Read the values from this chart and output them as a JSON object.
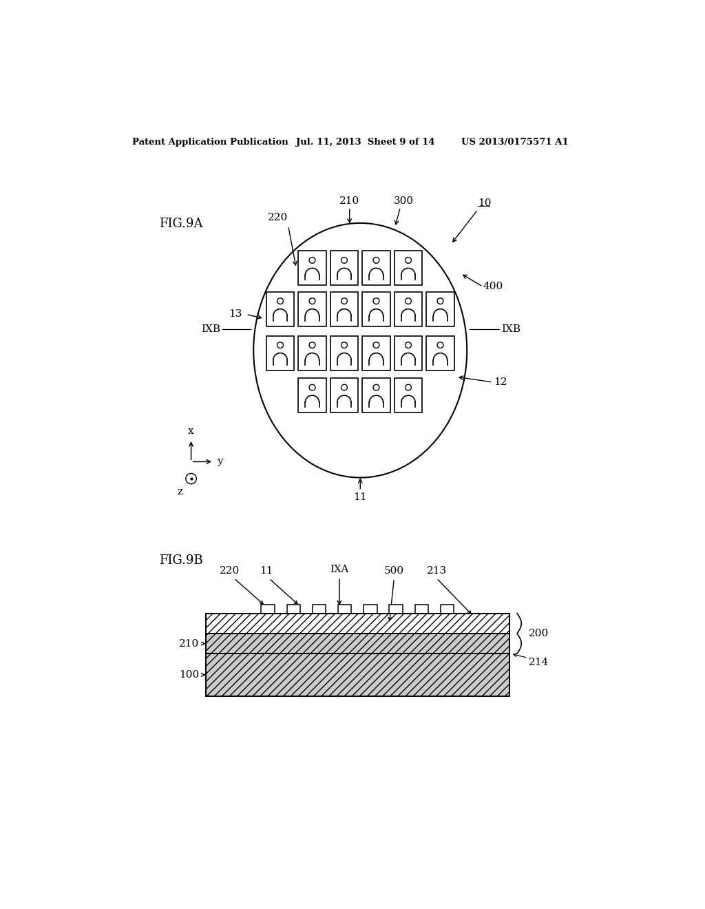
{
  "bg_color": "#ffffff",
  "header_left": "Patent Application Publication",
  "header_mid": "Jul. 11, 2013  Sheet 9 of 14",
  "header_right": "US 2013/0175571 A1",
  "fig9a_label": "FIG.9A",
  "fig9b_label": "FIG.9B"
}
